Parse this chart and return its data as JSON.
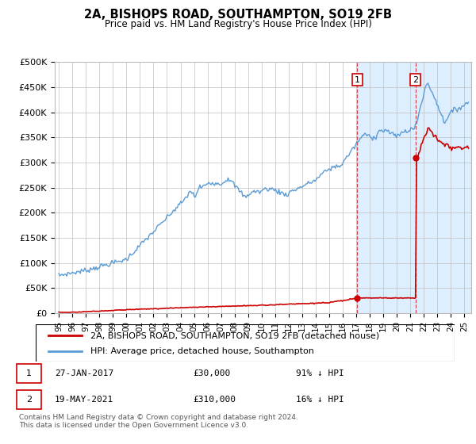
{
  "title": "2A, BISHOPS ROAD, SOUTHAMPTON, SO19 2FB",
  "subtitle": "Price paid vs. HM Land Registry's House Price Index (HPI)",
  "hpi_color": "#5b9bd5",
  "property_color": "#cc0000",
  "background_color": "#ffffff",
  "plot_bg_color": "#ffffff",
  "shade_color": "#ddeeff",
  "grid_color": "#c0c0c0",
  "ylim": [
    0,
    500000
  ],
  "yticks": [
    0,
    50000,
    100000,
    150000,
    200000,
    250000,
    300000,
    350000,
    400000,
    450000,
    500000
  ],
  "ytick_labels": [
    "£0",
    "£50K",
    "£100K",
    "£150K",
    "£200K",
    "£250K",
    "£300K",
    "£350K",
    "£400K",
    "£450K",
    "£500K"
  ],
  "xlim_start": 1994.7,
  "xlim_end": 2025.5,
  "t_start": 1995.0,
  "t_end": 2025.3,
  "sale1_date": 2017.07,
  "sale1_price": 30000,
  "sale2_date": 2021.38,
  "sale2_price": 310000,
  "legend_line1": "2A, BISHOPS ROAD, SOUTHAMPTON, SO19 2FB (detached house)",
  "legend_line2": "HPI: Average price, detached house, Southampton",
  "annotation1_date": "27-JAN-2017",
  "annotation1_price": "£30,000",
  "annotation1_hpi": "91% ↓ HPI",
  "annotation2_date": "19-MAY-2021",
  "annotation2_price": "£310,000",
  "annotation2_hpi": "16% ↓ HPI",
  "footer": "Contains HM Land Registry data © Crown copyright and database right 2024.\nThis data is licensed under the Open Government Licence v3.0."
}
